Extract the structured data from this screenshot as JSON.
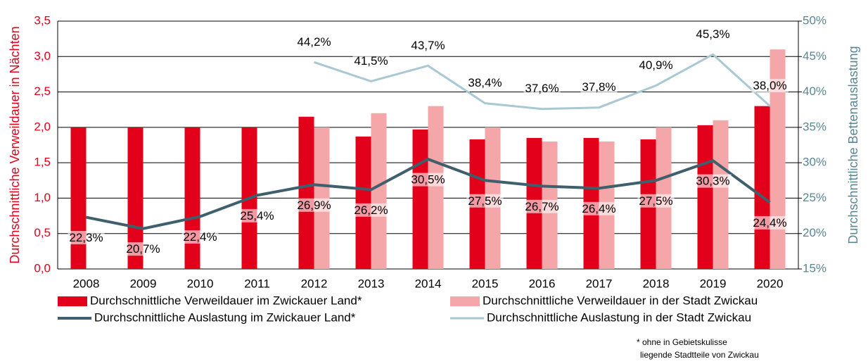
{
  "chart_data": {
    "type": "bar_line",
    "y_label": "Durchschnittliche Verweildauer in Nächten",
    "y2_label": "Durchschnittliche Bettenauslastung",
    "categories": [
      "2008",
      "2009",
      "2010",
      "2011",
      "2012",
      "2013",
      "2014",
      "2015",
      "2016",
      "2017",
      "2018",
      "2019",
      "2020"
    ],
    "ylim": [
      0,
      3.5
    ],
    "yticks": [
      {
        "value": 0,
        "label": "0,0"
      },
      {
        "value": 0.5,
        "label": "0,5"
      },
      {
        "value": 1,
        "label": "1,0"
      },
      {
        "value": 1.5,
        "label": "1,5"
      },
      {
        "value": 2,
        "label": "2,0"
      },
      {
        "value": 2.5,
        "label": "2,5"
      },
      {
        "value": 3,
        "label": "3,0"
      },
      {
        "value": 3.5,
        "label": "3,5"
      }
    ],
    "y2lim": [
      15,
      50
    ],
    "y2ticks": [
      {
        "value": 15,
        "label": "15%"
      },
      {
        "value": 20,
        "label": "20%"
      },
      {
        "value": 25,
        "label": "25%"
      },
      {
        "value": 30,
        "label": "30%"
      },
      {
        "value": 35,
        "label": "35%"
      },
      {
        "value": 40,
        "label": "40%"
      },
      {
        "value": 45,
        "label": "45%"
      },
      {
        "value": 50,
        "label": "50%"
      }
    ],
    "grid": true,
    "series": [
      {
        "name": "Durchschnittliche Verweildauer im Zwickauer Land*",
        "type": "bar",
        "color": "#e2001a",
        "values": [
          2.0,
          2.0,
          2.0,
          2.0,
          2.15,
          1.87,
          1.97,
          1.83,
          1.85,
          1.85,
          1.83,
          2.03,
          2.3
        ]
      },
      {
        "name": "Durchschnittliche Verweildauer in der Stadt Zwickau",
        "type": "bar",
        "color": "#f4a6a8",
        "values": [
          null,
          null,
          null,
          null,
          2.0,
          2.2,
          2.3,
          2.0,
          1.8,
          1.8,
          2.0,
          2.1,
          3.1
        ]
      },
      {
        "name": "Durchschnittliche Auslastung im Zwickauer Land*",
        "type": "line",
        "axis": "y2",
        "color": "#3e5f6b",
        "values": [
          22.3,
          20.7,
          22.4,
          25.4,
          26.9,
          26.2,
          30.5,
          27.5,
          26.7,
          26.4,
          27.5,
          30.3,
          24.4
        ],
        "value_labels": [
          "22,3%",
          "20,7%",
          "22,4%",
          "25,4%",
          "26,9%",
          "26,2%",
          "30,5%",
          "27,5%",
          "26,7%",
          "26,4%",
          "27,5%",
          "30,3%",
          "24,4%"
        ]
      },
      {
        "name": "Durchschnittliche Auslastung in der Stadt Zwickau",
        "type": "line",
        "axis": "y2",
        "color": "#a9c8d4",
        "values": [
          null,
          null,
          null,
          null,
          44.2,
          41.5,
          43.7,
          38.4,
          37.6,
          37.8,
          40.9,
          45.3,
          38.0
        ],
        "value_labels": [
          null,
          null,
          null,
          null,
          "44,2%",
          "41,5%",
          "43,7%",
          "38,4%",
          "37,6%",
          "37,8%",
          "40,9%",
          "45,3%",
          "38,0%"
        ]
      }
    ],
    "footnote": [
      "* ohne in Gebietskulisse",
      "liegende Stadtteile von Zwickau"
    ]
  }
}
